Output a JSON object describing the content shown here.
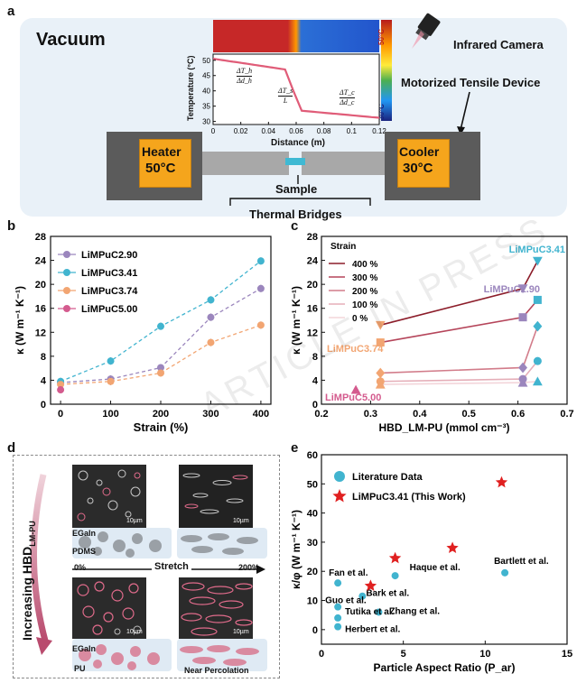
{
  "watermark": "ARTICLE IN PRESS",
  "panel_a": {
    "letter": "a",
    "vacuum": "Vacuum",
    "infrared_camera": "Infrared Camera",
    "motorized_device": "Motorized Tensile Device",
    "heater": [
      "Heater",
      "50°C"
    ],
    "cooler": [
      "Cooler",
      "30°C"
    ],
    "sample": "Sample",
    "thermal_bridges": "Thermal Bridges",
    "colorbar": {
      "top": "50°C",
      "bottom": "30°C"
    },
    "inset": {
      "xlabel": "Distance (m)",
      "ylabel": "Temperature (°C)",
      "xticks": [
        "0",
        "0.02",
        "0.04",
        "0.06",
        "0.08",
        "0.1",
        "0.12"
      ],
      "yticks": [
        "30",
        "35",
        "40",
        "45",
        "50"
      ],
      "ann_h": {
        "num": "ΔT_h",
        "den": "Δd_h"
      },
      "ann_s": {
        "num": "ΔT_s",
        "den": "L"
      },
      "ann_c": {
        "num": "ΔT_c",
        "den": "Δd_c"
      }
    }
  },
  "panel_b": {
    "letter": "b",
    "chart_data": {
      "type": "line",
      "xlabel": "Strain (%)",
      "ylabel": "κ (W m⁻¹ K⁻¹)",
      "x": [
        0,
        100,
        200,
        300,
        400
      ],
      "xlim": [
        -20,
        420
      ],
      "ylim": [
        0,
        28
      ],
      "yticks": [
        0,
        4,
        8,
        12,
        16,
        20,
        24,
        28
      ],
      "series": [
        {
          "name": "LiMPuC2.90",
          "color": "#9b86bd",
          "values": [
            3.6,
            4.2,
            6.1,
            14.5,
            19.3
          ]
        },
        {
          "name": "LiMPuC3.41",
          "color": "#41b4cf",
          "values": [
            3.8,
            7.2,
            13.0,
            17.4,
            23.9
          ]
        },
        {
          "name": "LiMPuC3.74",
          "color": "#f2a572",
          "values": [
            3.3,
            3.8,
            5.2,
            10.3,
            13.2
          ]
        },
        {
          "name": "LiMPuC5.00",
          "color": "#d45b8e",
          "values": [
            2.4,
            null,
            null,
            null,
            null
          ]
        }
      ],
      "legend": "top-left"
    }
  },
  "panel_c": {
    "letter": "c",
    "chart_data": {
      "type": "scatter",
      "xlabel": "HBD_LM-PU (mmol cm⁻³)",
      "ylabel": "κ (W m⁻¹ K⁻¹)",
      "xlim": [
        0.2,
        0.7
      ],
      "ylim": [
        0,
        28
      ],
      "xticks": [
        0.2,
        0.3,
        0.4,
        0.5,
        0.6,
        0.7
      ],
      "yticks": [
        0,
        4,
        8,
        12,
        16,
        20,
        24,
        28
      ],
      "legend_title": "Strain",
      "strains": [
        "400 %",
        "300 %",
        "200 %",
        "100 %",
        "0 %"
      ],
      "strain_colors": [
        "#8c1d2a",
        "#b5455a",
        "#d27c8a",
        "#e5aeb8",
        "#f3d5da"
      ],
      "materials": [
        {
          "name": "LiMPuC3.74",
          "x": 0.32,
          "color": "#f2a572",
          "marker": "triangle-down",
          "values": [
            13.2,
            10.3,
            5.2,
            3.8,
            3.3
          ]
        },
        {
          "name": "LiMPuC2.90",
          "x": 0.61,
          "color": "#9b86bd",
          "marker": "diamond",
          "values": [
            19.3,
            14.5,
            6.1,
            4.2,
            3.6
          ]
        },
        {
          "name": "LiMPuC3.41",
          "x": 0.64,
          "color": "#41b4cf",
          "marker": "square",
          "values": [
            23.9,
            17.4,
            13.0,
            7.2,
            3.8
          ]
        },
        {
          "name": "LiMPuC5.00",
          "x": 0.27,
          "color": "#d45b8e",
          "marker": "triangle",
          "values": [
            2.4
          ]
        }
      ],
      "series_markers": [
        "triangle-down",
        "square",
        "diamond",
        "circle",
        "triangle"
      ]
    }
  },
  "panel_d": {
    "letter": "d",
    "side_label": "Increasing HBD",
    "side_sub": "LM-PU",
    "scale": "10µm",
    "egain": "EGaIn",
    "pdms": "PDMS",
    "pu": "PU",
    "stretch": "Stretch",
    "pct_start": "0%",
    "pct_end": "200%",
    "near_percolation": "Near Percolation"
  },
  "panel_e": {
    "letter": "e",
    "chart_data": {
      "type": "scatter",
      "xlabel": "Particle Aspect Ratio (P_ar)",
      "ylabel": "κ/φ (W m⁻¹ K⁻¹)",
      "xlim": [
        0,
        15
      ],
      "ylim": [
        -5,
        60
      ],
      "xticks": [
        0,
        5,
        10,
        15
      ],
      "yticks": [
        0,
        10,
        20,
        30,
        40,
        50,
        60
      ],
      "legend": [
        {
          "name": "Literature Data",
          "marker": "circle",
          "color": "#41b4cf"
        },
        {
          "name": "LiMPuC3.41 (This Work)",
          "marker": "star",
          "color": "#e02020"
        }
      ],
      "literature": [
        {
          "label": "Fan et al.",
          "x": 1.0,
          "y": 16.0
        },
        {
          "label": "Haque et al.",
          "x": 4.5,
          "y": 18.5
        },
        {
          "label": "Bartlett et al.",
          "x": 11.2,
          "y": 19.5
        },
        {
          "label": "Bark et al.",
          "x": 2.5,
          "y": 11.5
        },
        {
          "label": "Guo et al.",
          "x": 1.0,
          "y": 7.8
        },
        {
          "label": "Zhang et al.",
          "x": 3.5,
          "y": 6.0
        },
        {
          "label": "Tutika et al.",
          "x": 1.0,
          "y": 4.0
        },
        {
          "label": "Herbert et al.",
          "x": 1.0,
          "y": 1.0
        }
      ],
      "this_work": [
        {
          "x": 3.0,
          "y": 15.0
        },
        {
          "x": 4.5,
          "y": 24.5
        },
        {
          "x": 8.0,
          "y": 28.0
        },
        {
          "x": 11.0,
          "y": 50.5
        }
      ]
    }
  }
}
